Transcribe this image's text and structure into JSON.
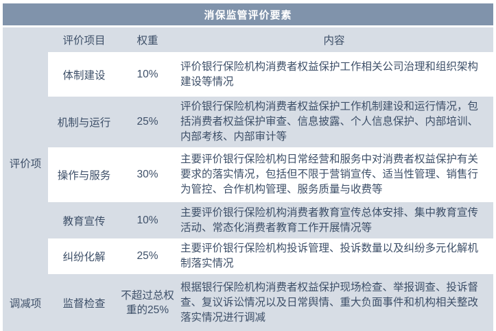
{
  "title": "消保监管评价要素",
  "columns": {
    "item": "评价项目",
    "weight": "权重",
    "content": "内容"
  },
  "groups": [
    {
      "label": "评价项"
    },
    {
      "label": "调减项"
    }
  ],
  "rows": [
    {
      "item": "体制建设",
      "weight": "10%",
      "content": "评价银行保险机构消费者权益保护工作相关公司治理和组织架构建设等情况"
    },
    {
      "item": "机制与运行",
      "weight": "25%",
      "content": "评价银行保险机构消费者权益保护工作机制建设和运行情况，包括消费者权益保护审查、信息披露、个人信息保护、内部培训、内部考核、内部审计等"
    },
    {
      "item": "操作与服务",
      "weight": "30%",
      "content": "主要评价银行保险机构日常经营和服务中对消费者权益保护有关要求的落实情况，包括但不限于营销宣传、适当性管理、销售行为管控、合作机构管理、服务质量与收费等"
    },
    {
      "item": "教育宣传",
      "weight": "10%",
      "content": "主要评价银行保险机构消费者教育宣传总体安排、集中教育宣传活动、常态化消费者教育工作开展情况等"
    },
    {
      "item": "纠纷化解",
      "weight": "25%",
      "content": "主要评价银行保险机构投诉管理、投诉数量以及纠纷多元化解机制落实情况"
    },
    {
      "item": "监督检查",
      "weight": "不超过总权\n重的25%",
      "content": "根据银行保险机构消费者权益保护现场检查、举报调查、投诉督查、复议诉讼情况以及日常舆情、重大负面事件和机构相关整改落实情况进行调减"
    }
  ],
  "colors": {
    "title_bar": "#8093ab",
    "row_shaded": "#d7dde5",
    "row_plain": "#ffffff",
    "text": "#3d4f68",
    "title_text": "#ffffff"
  }
}
